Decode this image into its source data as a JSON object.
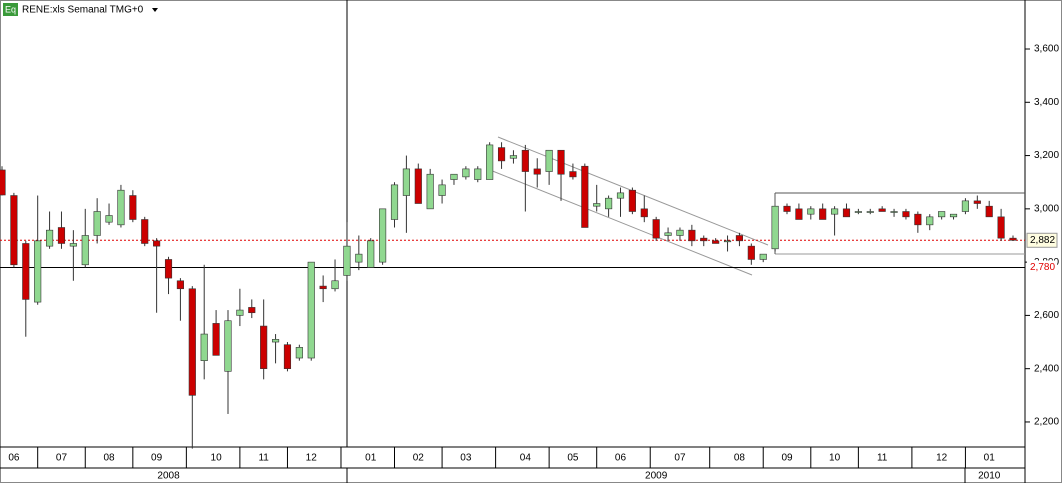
{
  "chart_data": {
    "type": "candlestick",
    "title": "RENE:xls Semanal TMG+0",
    "icon_label": "Eq",
    "up_color": "#90d890",
    "down_color": "#cc0000",
    "open": [
      3146,
      3050,
      2870,
      2650,
      2860,
      2930,
      2860,
      2790,
      2900,
      2950,
      2940,
      3050,
      2960,
      2880,
      2810,
      2730,
      2700,
      2430,
      2570,
      2390,
      2600,
      2630,
      2560,
      2500,
      2490,
      2440,
      2440,
      2710,
      2700,
      2750,
      2800,
      2780,
      2800,
      2960,
      3050,
      3150,
      3000,
      3050,
      3110,
      3120,
      3110,
      3110,
      3230,
      3190,
      3220,
      3150,
      3140,
      3220,
      3140,
      3160,
      3010,
      3000,
      3040,
      3070,
      3000,
      2960,
      2900,
      2900,
      2920,
      2890,
      2880,
      2880,
      2900,
      2860,
      2810,
      2850,
      3010,
      3000,
      2980,
      3000,
      2980,
      3000,
      2990,
      2990,
      3000,
      2990,
      2990,
      2980,
      2940,
      2970,
      2970,
      2990,
      3030,
      3010,
      2970,
      2890
    ],
    "high": [
      3160,
      3060,
      2880,
      3050,
      2990,
      2990,
      2920,
      3000,
      3040,
      3020,
      3090,
      3070,
      2970,
      2890,
      2820,
      2740,
      2710,
      2790,
      2620,
      2620,
      2700,
      2660,
      2660,
      2530,
      2500,
      2490,
      2800,
      2750,
      2810,
      2950,
      2900,
      2890,
      3000,
      3100,
      3200,
      3170,
      3150,
      3110,
      3130,
      3160,
      3160,
      3250,
      3250,
      3220,
      3240,
      3190,
      3220,
      3220,
      3170,
      3170,
      3090,
      3050,
      3080,
      3080,
      3050,
      2970,
      2930,
      2930,
      2940,
      2900,
      2890,
      2900,
      2910,
      2870,
      2830,
      3010,
      3020,
      3020,
      3010,
      3020,
      3010,
      3020,
      3000,
      3000,
      3010,
      3000,
      3000,
      2990,
      2980,
      2990,
      2980,
      3040,
      3050,
      3030,
      3000,
      2900
    ],
    "low": [
      3050,
      2780,
      2520,
      2640,
      2850,
      2850,
      2730,
      2780,
      2870,
      2940,
      2930,
      2950,
      2860,
      2610,
      2680,
      2580,
      2100,
      2360,
      2450,
      2230,
      2560,
      2590,
      2360,
      2420,
      2390,
      2430,
      2430,
      2650,
      2690,
      2730,
      2770,
      2780,
      2790,
      2930,
      2910,
      3020,
      3000,
      3020,
      3090,
      3110,
      3100,
      3110,
      3150,
      3170,
      2990,
      3080,
      3090,
      3030,
      3110,
      2930,
      2990,
      2970,
      2970,
      2980,
      2950,
      2880,
      2880,
      2880,
      2860,
      2860,
      2870,
      2840,
      2860,
      2790,
      2800,
      2840,
      2980,
      2960,
      2960,
      2960,
      2900,
      2970,
      2980,
      2980,
      2990,
      2970,
      2960,
      2910,
      2920,
      2960,
      2960,
      2980,
      3000,
      2980,
      2880,
      2880
    ],
    "close": [
      3052,
      2790,
      2660,
      2880,
      2920,
      2870,
      2870,
      2900,
      2990,
      2975,
      3070,
      2960,
      2870,
      2860,
      2740,
      2700,
      2300,
      2530,
      2450,
      2580,
      2620,
      2610,
      2400,
      2510,
      2400,
      2480,
      2800,
      2700,
      2730,
      2860,
      2830,
      2880,
      3000,
      3090,
      3150,
      3020,
      3130,
      3090,
      3130,
      3150,
      3150,
      3240,
      3180,
      3200,
      3140,
      3130,
      3220,
      3130,
      3120,
      2930,
      3020,
      3040,
      3060,
      2990,
      2970,
      2890,
      2910,
      2920,
      2880,
      2880,
      2870,
      2880,
      2880,
      2810,
      2830,
      3010,
      2990,
      2960,
      3000,
      2960,
      3000,
      2970,
      2990,
      2990,
      2990,
      2990,
      2970,
      2940,
      2970,
      2990,
      2980,
      3030,
      3020,
      2970,
      2890,
      2882
    ],
    "categories": [
      null,
      "06",
      null,
      null,
      null,
      "07",
      null,
      null,
      null,
      "08",
      null,
      null,
      null,
      "09",
      null,
      null,
      null,
      null,
      "10",
      null,
      null,
      null,
      "11",
      null,
      null,
      null,
      "12",
      null,
      null,
      null,
      null,
      "01",
      null,
      null,
      null,
      "02",
      null,
      null,
      null,
      "03",
      null,
      null,
      null,
      null,
      "04",
      null,
      null,
      null,
      "05",
      null,
      null,
      null,
      "06",
      null,
      null,
      null,
      null,
      "07",
      null,
      null,
      null,
      null,
      "08",
      null,
      null,
      null,
      "09",
      null,
      null,
      null,
      "10",
      null,
      null,
      null,
      "11",
      null,
      null,
      null,
      null,
      "12",
      null,
      null,
      null,
      "01",
      null,
      null
    ],
    "years": [
      null,
      null,
      null,
      null,
      null,
      null,
      null,
      null,
      null,
      null,
      null,
      null,
      null,
      null,
      "2008",
      null,
      null,
      null,
      null,
      null,
      null,
      null,
      null,
      null,
      null,
      null,
      null,
      null,
      null,
      null,
      null,
      null,
      null,
      null,
      null,
      null,
      null,
      null,
      null,
      null,
      null,
      null,
      null,
      null,
      null,
      null,
      null,
      null,
      null,
      null,
      null,
      null,
      null,
      null,
      null,
      "2009",
      null,
      null,
      null,
      null,
      null,
      null,
      null,
      null,
      null,
      null,
      null,
      null,
      null,
      null,
      null,
      null,
      null,
      null,
      null,
      null,
      null,
      null,
      null,
      null,
      null,
      null,
      null,
      "2010",
      null,
      null
    ],
    "ylim": [
      2106,
      3784
    ],
    "yticks": [
      {
        "value": 2200,
        "label": "2,200"
      },
      {
        "value": 2400,
        "label": "2,400"
      },
      {
        "value": 2600,
        "label": "2,600"
      },
      {
        "value": 2800,
        "label": "2,800"
      },
      {
        "value": 3000,
        "label": "3,000"
      },
      {
        "value": 3200,
        "label": "3,200"
      },
      {
        "value": 3400,
        "label": "3,400"
      },
      {
        "value": 3600,
        "label": "3,600"
      }
    ],
    "levels": [
      {
        "value": 2882,
        "label": "2,882",
        "color": "#e00000"
      },
      {
        "value": 2780,
        "label": "2,780",
        "color": "#000000"
      }
    ]
  }
}
